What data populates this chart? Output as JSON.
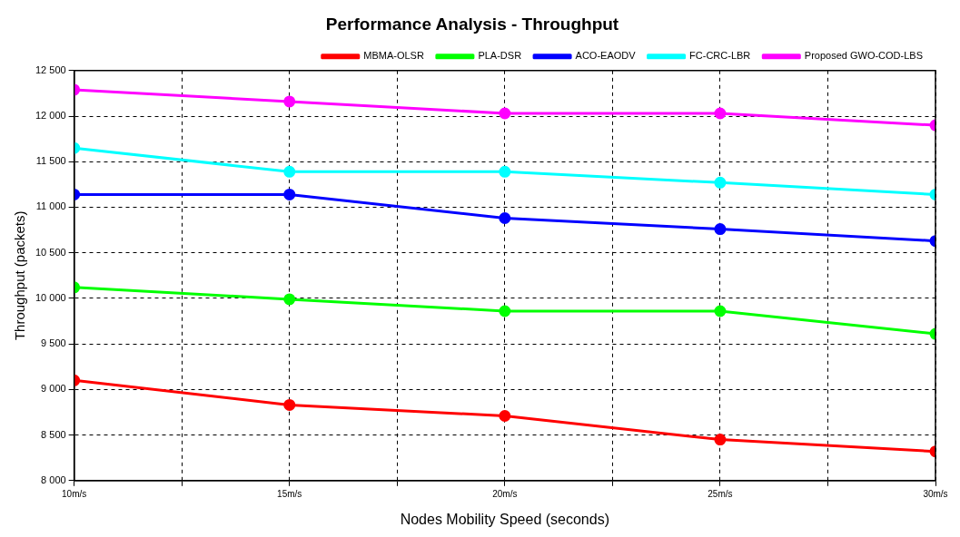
{
  "chart_data": {
    "type": "line",
    "title": "Performance Analysis - Throughput",
    "xlabel": "Nodes Mobility Speed (seconds)",
    "ylabel": "Throughput (packets)",
    "x": [
      10,
      15,
      20,
      25,
      30
    ],
    "xlim": [
      10,
      30
    ],
    "xticks": [
      {
        "value": 10,
        "label": "10m/s"
      },
      {
        "value": 12.5,
        "label": null
      },
      {
        "value": 15,
        "label": "15m/s"
      },
      {
        "value": 17.5,
        "label": null
      },
      {
        "value": 20,
        "label": "20m/s"
      },
      {
        "value": 22.5,
        "label": null
      },
      {
        "value": 25,
        "label": "25m/s"
      },
      {
        "value": 27.5,
        "label": null
      },
      {
        "value": 30,
        "label": "30m/s"
      }
    ],
    "ylim": [
      8000,
      12500
    ],
    "yticks": [
      {
        "value": 8000,
        "label": "8 000"
      },
      {
        "value": 8500,
        "label": "8 500"
      },
      {
        "value": 9000,
        "label": "9 000"
      },
      {
        "value": 9500,
        "label": "9 500"
      },
      {
        "value": 10000,
        "label": "10 000"
      },
      {
        "value": 10500,
        "label": "10 500"
      },
      {
        "value": 11000,
        "label": "11 000"
      },
      {
        "value": 11500,
        "label": "11 500"
      },
      {
        "value": 12000,
        "label": "12 000"
      },
      {
        "value": 12500,
        "label": "12 500"
      }
    ],
    "series": [
      {
        "name": "MBMA-OLSR",
        "color": "#ff0000",
        "values": [
          9100,
          8830,
          8710,
          8450,
          8320
        ]
      },
      {
        "name": "PLA-DSR",
        "color": "#00ff00",
        "values": [
          10120,
          9990,
          9860,
          9860,
          9610
        ]
      },
      {
        "name": "ACO-EAODV",
        "color": "#0000ff",
        "values": [
          11140,
          11140,
          10880,
          10760,
          10630
        ]
      },
      {
        "name": "FC-CRC-LBR",
        "color": "#00ffff",
        "values": [
          11650,
          11390,
          11390,
          11270,
          11140
        ]
      },
      {
        "name": "Proposed GWO-COD-LBS",
        "color": "#ff00ff",
        "values": [
          12290,
          12160,
          12030,
          12030,
          11900
        ]
      }
    ],
    "grid": true,
    "legend": "top right",
    "marker": "circle",
    "line_style": "solid"
  }
}
